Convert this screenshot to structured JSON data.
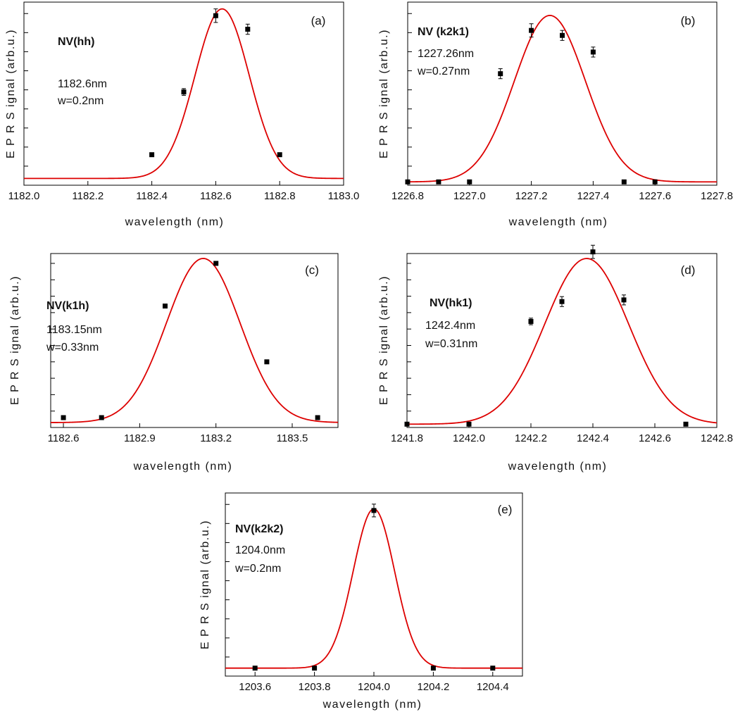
{
  "chart_data": [
    {
      "type": "scatter",
      "panel": "(a)",
      "xlabel": "wavelength (nm)",
      "ylabel": "E P R  S ignal (arb.u.)",
      "xlim": [
        1182.0,
        1183.0
      ],
      "xticks": [
        1182.0,
        1182.2,
        1182.4,
        1182.6,
        1182.8,
        1183.0
      ],
      "xtick_labels": [
        "1182.0",
        "1182.2",
        "1182.4",
        "1182.6",
        "1182.8",
        "1183.0"
      ],
      "ylim": [
        -0.04,
        1.04
      ],
      "annotations": [
        "NV(hh)",
        "1182.6nm",
        " w=0.2nm"
      ],
      "series": [
        {
          "kind": "points",
          "x": [
            1182.4,
            1182.5,
            1182.6,
            1182.7,
            1182.8
          ],
          "y": [
            0.14,
            0.51,
            0.96,
            0.88,
            0.14
          ],
          "err": [
            0,
            0.02,
            0.04,
            0.03,
            0
          ]
        },
        {
          "kind": "gaussian-fit",
          "center": 1182.62,
          "sigma": 0.085,
          "amplitude": 1.0,
          "offset": 0.0,
          "color": "#dd0000"
        }
      ]
    },
    {
      "type": "scatter",
      "panel": "(b)",
      "xlabel": "wavelength (nm)",
      "ylabel": "E P R  S ignal (arb.u.)",
      "xlim": [
        1226.8,
        1227.8
      ],
      "xticks": [
        1226.8,
        1227.0,
        1227.2,
        1227.4,
        1227.6,
        1227.8
      ],
      "xtick_labels": [
        "1226.8",
        "1227.0",
        "1227.2",
        "1227.4",
        "1227.6",
        "1227.8"
      ],
      "ylim": [
        -0.02,
        1.08
      ],
      "annotations": [
        "NV (k2k1)",
        "1227.26nm",
        "w=0.27nm"
      ],
      "series": [
        {
          "kind": "points",
          "x": [
            1226.8,
            1226.9,
            1227.0,
            1227.1,
            1227.2,
            1227.3,
            1227.4,
            1227.5,
            1227.6
          ],
          "y": [
            0.0,
            0.0,
            0.0,
            0.65,
            0.91,
            0.88,
            0.78,
            0.0,
            0.0
          ],
          "err": [
            0,
            0,
            0,
            0.03,
            0.04,
            0.03,
            0.03,
            0,
            0
          ]
        },
        {
          "kind": "gaussian-fit",
          "center": 1227.26,
          "sigma": 0.115,
          "amplitude": 1.0,
          "offset": 0.0,
          "color": "#dd0000"
        }
      ]
    },
    {
      "type": "scatter",
      "panel": "(c)",
      "xlabel": "wavelength (nm)",
      "ylabel": "E P R  S ignal (arb.u.)",
      "xlim": [
        1182.55,
        1183.68
      ],
      "xticks": [
        1182.6,
        1182.9,
        1183.2,
        1183.5
      ],
      "xtick_labels": [
        "1182.6",
        "1182.9",
        "1183.2",
        "1183.5"
      ],
      "ylim": [
        -0.03,
        1.03
      ],
      "annotations": [
        "NV(k1h)",
        "1183.15nm",
        "w=0.33nm"
      ],
      "series": [
        {
          "kind": "points",
          "x": [
            1182.6,
            1182.75,
            1183.0,
            1183.2,
            1183.4,
            1183.6
          ],
          "y": [
            0.03,
            0.03,
            0.71,
            0.97,
            0.37,
            0.03
          ],
          "err": [
            0,
            0,
            0,
            0,
            0,
            0
          ]
        },
        {
          "kind": "gaussian-fit",
          "center": 1183.15,
          "sigma": 0.145,
          "amplitude": 1.0,
          "offset": 0.0,
          "color": "#dd0000"
        }
      ]
    },
    {
      "type": "scatter",
      "panel": "(d)",
      "xlabel": "wavelength (nm)",
      "ylabel": "E P R  S ignal (arb.u.)",
      "xlim": [
        1241.8,
        1242.8
      ],
      "xticks": [
        1241.8,
        1242.0,
        1242.2,
        1242.4,
        1242.6,
        1242.8
      ],
      "xtick_labels": [
        "1241.8",
        "1242.0",
        "1242.2",
        "1242.4",
        "1242.6",
        "1242.8"
      ],
      "ylim": [
        -0.02,
        1.03
      ],
      "annotations": [
        "NV(hk1)",
        "1242.4nm",
        "w=0.31nm"
      ],
      "series": [
        {
          "kind": "points",
          "x": [
            1241.8,
            1242.0,
            1242.2,
            1242.3,
            1242.4,
            1242.5,
            1242.7
          ],
          "y": [
            0.0,
            0.0,
            0.62,
            0.74,
            1.04,
            0.75,
            0.0
          ],
          "err": [
            0,
            0,
            0.02,
            0.03,
            0.04,
            0.03,
            0
          ]
        },
        {
          "kind": "gaussian-fit",
          "center": 1242.38,
          "sigma": 0.135,
          "amplitude": 1.0,
          "offset": 0.0,
          "color": "#dd0000"
        }
      ]
    },
    {
      "type": "scatter",
      "panel": "(e)",
      "xlabel": "wavelength (nm)",
      "ylabel": "E P R  S ignal (arb.u.)",
      "xlim": [
        1203.5,
        1204.5
      ],
      "xticks": [
        1203.6,
        1203.8,
        1204.0,
        1204.2,
        1204.4
      ],
      "xtick_labels": [
        "1203.6",
        "1203.8",
        "1204.0",
        "1204.2",
        "1204.4"
      ],
      "ylim": [
        -0.05,
        1.1
      ],
      "annotations": [
        "NV(k2k2)",
        "1204.0nm",
        "w=0.2nm"
      ],
      "series": [
        {
          "kind": "points",
          "x": [
            1203.6,
            1203.8,
            1204.0,
            1204.2,
            1204.4
          ],
          "y": [
            0.0,
            0.0,
            0.99,
            0.0,
            0.0
          ],
          "err": [
            0,
            0,
            0.04,
            0,
            0
          ]
        },
        {
          "kind": "gaussian-fit",
          "center": 1204.0,
          "sigma": 0.07,
          "amplitude": 1.0,
          "offset": 0.0,
          "color": "#dd0000"
        }
      ]
    }
  ]
}
